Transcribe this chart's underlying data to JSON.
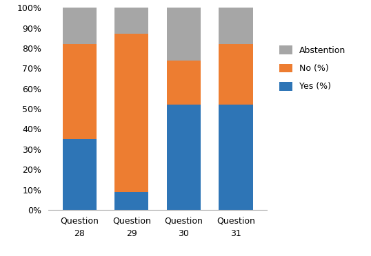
{
  "categories": [
    "Question\n28",
    "Question\n29",
    "Question\n30",
    "Question\n31"
  ],
  "yes": [
    35,
    9,
    52,
    52
  ],
  "no": [
    47,
    78,
    22,
    30
  ],
  "abstention": [
    18,
    13,
    26,
    18
  ],
  "colors": {
    "yes": "#2E75B6",
    "no": "#ED7D31",
    "abstention": "#A6A6A6"
  },
  "ylabel_ticks": [
    "0%",
    "10%",
    "20%",
    "30%",
    "40%",
    "50%",
    "60%",
    "70%",
    "80%",
    "90%",
    "100%"
  ],
  "ylim": [
    0,
    100
  ],
  "bar_width": 0.65,
  "figsize": [
    5.38,
    3.72
  ],
  "dpi": 100
}
